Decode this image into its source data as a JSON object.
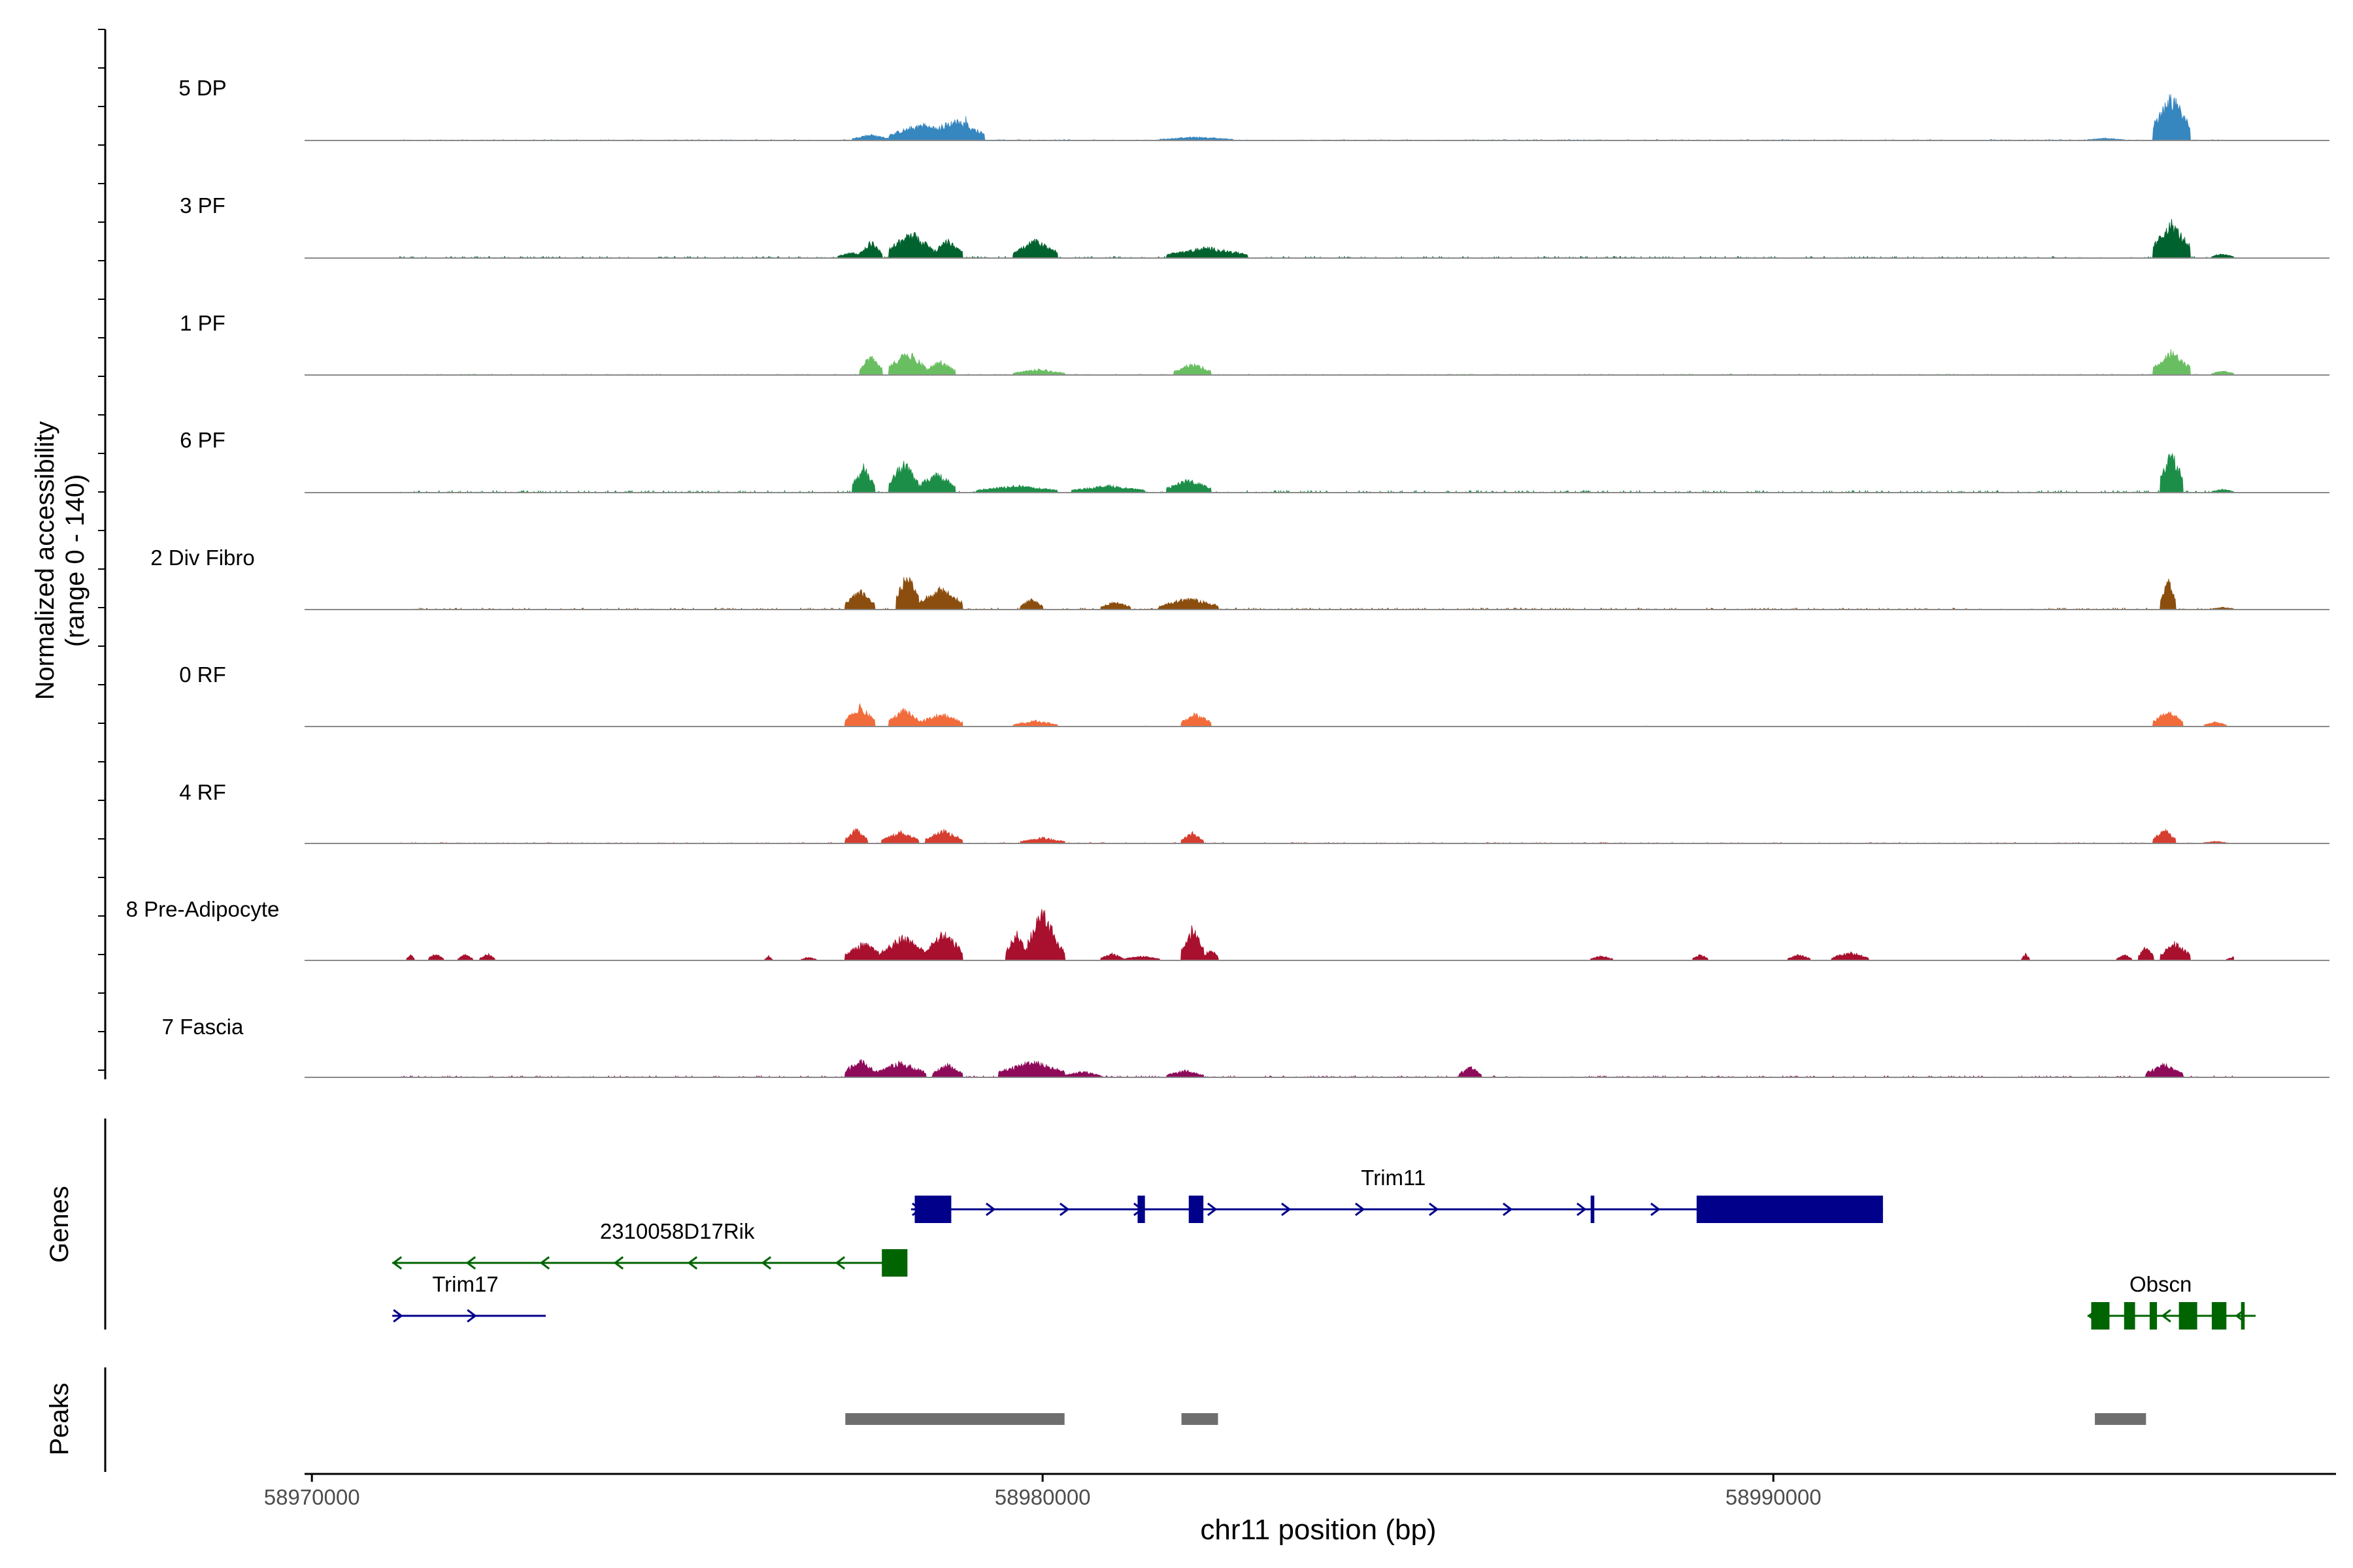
{
  "chart_data": {
    "type": "area",
    "title": "",
    "xlabel": "chr11 position (bp)",
    "ylabel_line1": "Normalized accessibility",
    "ylabel_line2": "(range 0 - 140)",
    "ylim": [
      0,
      140
    ],
    "xlim": [
      58969900,
      58997700
    ],
    "data_start": 58970000,
    "data_end": 58996500,
    "x_ticks": [
      58970000,
      58980000,
      58990000
    ],
    "x_tick_labels": [
      "58970000",
      "58980000",
      "58990000"
    ],
    "tracks": [
      {
        "name": "5 DP",
        "color": "#3686BF",
        "scale": 1.0,
        "noise": 2,
        "start": 58971200,
        "end": 58996200,
        "peaks": [
          [
            58977400,
            58977900,
            10
          ],
          [
            58977900,
            58978800,
            28
          ],
          [
            58978900,
            58979000,
            40
          ],
          [
            58978400,
            58979200,
            34
          ],
          [
            58981600,
            58982600,
            6
          ],
          [
            58994300,
            58994800,
            4
          ],
          [
            58995200,
            58995700,
            75
          ]
        ]
      },
      {
        "name": "3 PF",
        "color": "#00632F",
        "scale": 1.0,
        "noise": 3,
        "start": 58971200,
        "end": 58996300,
        "peaks": [
          [
            58977200,
            58977600,
            10
          ],
          [
            58977500,
            58977800,
            28
          ],
          [
            58977900,
            58978500,
            44
          ],
          [
            58978500,
            58978900,
            30
          ],
          [
            58979600,
            58980200,
            30
          ],
          [
            58981700,
            58982800,
            18
          ],
          [
            58995200,
            58995700,
            60
          ],
          [
            58996000,
            58996300,
            8
          ]
        ]
      },
      {
        "name": "1 PF",
        "color": "#6ABE62",
        "scale": 1.0,
        "noise": 2,
        "start": 58971200,
        "end": 58996300,
        "peaks": [
          [
            58977500,
            58977800,
            34
          ],
          [
            58977900,
            58978400,
            40
          ],
          [
            58978400,
            58978800,
            24
          ],
          [
            58979600,
            58980300,
            10
          ],
          [
            58981800,
            58982300,
            20
          ],
          [
            58995200,
            58995700,
            40
          ],
          [
            58996000,
            58996300,
            8
          ]
        ]
      },
      {
        "name": "6 PF",
        "color": "#1D8E48",
        "scale": 1.0,
        "noise": 4,
        "start": 58971200,
        "end": 58996300,
        "peaks": [
          [
            58977400,
            58977700,
            44
          ],
          [
            58977900,
            58978300,
            52
          ],
          [
            58978300,
            58978800,
            34
          ],
          [
            58979100,
            58980200,
            12
          ],
          [
            58980400,
            58981400,
            12
          ],
          [
            58981700,
            58982300,
            22
          ],
          [
            58995300,
            58995600,
            72
          ],
          [
            58996000,
            58996300,
            6
          ]
        ]
      },
      {
        "name": "2 Div Fibro",
        "color": "#8B4E0E",
        "scale": 1.0,
        "noise": 3,
        "start": 58971200,
        "end": 58996300,
        "peaks": [
          [
            58977300,
            58977700,
            32
          ],
          [
            58978000,
            58978300,
            62
          ],
          [
            58978300,
            58978900,
            36
          ],
          [
            58979700,
            58980000,
            18
          ],
          [
            58980800,
            58981200,
            14
          ],
          [
            58981600,
            58982400,
            20
          ],
          [
            58995300,
            58995500,
            58
          ],
          [
            58996000,
            58996300,
            4
          ]
        ]
      },
      {
        "name": "0 RF",
        "color": "#F26B3B",
        "scale": 1.0,
        "noise": 1,
        "start": 58971200,
        "end": 58996300,
        "peaks": [
          [
            58977300,
            58977700,
            34
          ],
          [
            58977900,
            58978300,
            30
          ],
          [
            58978300,
            58978900,
            22
          ],
          [
            58979600,
            58980200,
            10
          ],
          [
            58981900,
            58982300,
            22
          ],
          [
            58995200,
            58995600,
            28
          ],
          [
            58995900,
            58996200,
            8
          ]
        ]
      },
      {
        "name": "4 RF",
        "color": "#D63E2F",
        "scale": 1.0,
        "noise": 2,
        "start": 58971200,
        "end": 58996300,
        "peaks": [
          [
            58977300,
            58977600,
            24
          ],
          [
            58977800,
            58978300,
            20
          ],
          [
            58978400,
            58978900,
            22
          ],
          [
            58979700,
            58980300,
            10
          ],
          [
            58981900,
            58982200,
            18
          ],
          [
            58995200,
            58995500,
            24
          ],
          [
            58995900,
            58996200,
            4
          ]
        ]
      },
      {
        "name": "8 Pre-Adipocyte",
        "color": "#A8102E",
        "scale": 1.0,
        "noise": 0,
        "start": 58971200,
        "end": 58996300,
        "peaks": [
          [
            58971300,
            58971400,
            10
          ],
          [
            58971600,
            58971800,
            12
          ],
          [
            58972000,
            58972200,
            10
          ],
          [
            58972300,
            58972500,
            12
          ],
          [
            58976200,
            58976300,
            8
          ],
          [
            58976700,
            58976900,
            6
          ],
          [
            58977300,
            58977800,
            30
          ],
          [
            58977800,
            58978400,
            42
          ],
          [
            58978400,
            58978900,
            48
          ],
          [
            58979500,
            58979800,
            46
          ],
          [
            58979800,
            58980200,
            90
          ],
          [
            58980000,
            58980300,
            40
          ],
          [
            58980800,
            58981100,
            12
          ],
          [
            58981100,
            58981600,
            8
          ],
          [
            58981900,
            58982200,
            56
          ],
          [
            58982200,
            58982400,
            20
          ],
          [
            58987500,
            58987800,
            8
          ],
          [
            58988900,
            58989100,
            10
          ],
          [
            58990200,
            58990500,
            10
          ],
          [
            58990800,
            58991300,
            14
          ],
          [
            58993400,
            58993500,
            12
          ],
          [
            58994700,
            58994900,
            10
          ],
          [
            58995000,
            58995200,
            24
          ],
          [
            58995300,
            58995700,
            30
          ],
          [
            58996200,
            58996400,
            6
          ]
        ]
      },
      {
        "name": "7 Fascia",
        "color": "#8E0B5A",
        "scale": 1.0,
        "noise": 3,
        "start": 58971200,
        "end": 58996300,
        "peaks": [
          [
            58977300,
            58977700,
            32
          ],
          [
            58977700,
            58978400,
            26
          ],
          [
            58978500,
            58978900,
            22
          ],
          [
            58979400,
            58980300,
            28
          ],
          [
            58980300,
            58980800,
            10
          ],
          [
            58981700,
            58982200,
            12
          ],
          [
            58985700,
            58986000,
            18
          ],
          [
            58995100,
            58995600,
            22
          ]
        ]
      }
    ],
    "genes": [
      {
        "name": "Trim11",
        "color": "#00008B",
        "strand": "+",
        "start": 58978200,
        "end": 58991500,
        "row": 0,
        "label_x": 58984800,
        "exons": [
          [
            58978250,
            58978750
          ],
          [
            58981300,
            58981400
          ],
          [
            58982000,
            58982200
          ],
          [
            58987500,
            58987550
          ],
          [
            58988950,
            58991500
          ]
        ]
      },
      {
        "name": "2310058D17Rik",
        "color": "#006400",
        "strand": "-",
        "start": 58971100,
        "end": 58978100,
        "row": 1,
        "label_x": 58975000,
        "exons": [
          [
            58977800,
            58978150
          ]
        ]
      },
      {
        "name": "Trim17",
        "color": "#00008B",
        "strand": "+",
        "start": 58971100,
        "end": 58973200,
        "row": 2,
        "label_x": 58972100,
        "exons": []
      },
      {
        "name": "Obscn",
        "color": "#006400",
        "strand": "-",
        "start": 58994300,
        "end": 58996600,
        "row": 2,
        "label_x": 58995300,
        "exons": [
          [
            58994350,
            58994600
          ],
          [
            58994800,
            58994950
          ],
          [
            58995150,
            58995250
          ],
          [
            58995550,
            58995800
          ],
          [
            58996000,
            58996200
          ],
          [
            58996400,
            58996450
          ]
        ]
      }
    ],
    "peaks_track": [
      [
        58977300,
        58980300
      ],
      [
        58981900,
        58982400
      ],
      [
        58994400,
        58995100
      ]
    ],
    "panel_labels": {
      "genes": "Genes",
      "peaks": "Peaks"
    }
  }
}
